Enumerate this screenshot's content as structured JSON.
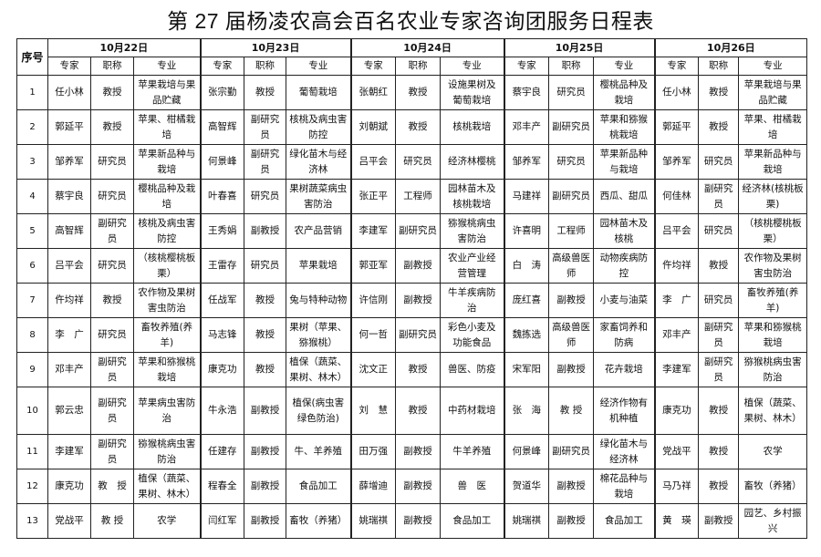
{
  "title": "第 27 届杨凌农高会百名农业专家咨询团服务日程表",
  "header": {
    "seq_label": "序号",
    "days": [
      "10月22日",
      "10月23日",
      "10月24日",
      "10月25日",
      "10月26日"
    ],
    "sub_columns": [
      "专家",
      "职称",
      "专业"
    ]
  },
  "rows": [
    {
      "n": "1",
      "cells": [
        [
          "任小林",
          "教授",
          "苹果栽培与果品贮藏"
        ],
        [
          "张宗勤",
          "教授",
          "葡萄栽培"
        ],
        [
          "张朝红",
          "教授",
          "设施果树及葡萄栽培"
        ],
        [
          "蔡宇良",
          "研究员",
          "樱桃品种及栽培"
        ],
        [
          "任小林",
          "教授",
          "苹果栽培与果品贮藏"
        ]
      ]
    },
    {
      "n": "2",
      "cells": [
        [
          "郭延平",
          "教授",
          "苹果、柑橘栽培"
        ],
        [
          "高智辉",
          "副研究员",
          "核桃及病虫害防控"
        ],
        [
          "刘朝斌",
          "教授",
          "核桃栽培"
        ],
        [
          "邓丰产",
          "副研究员",
          "苹果和猕猴桃栽培"
        ],
        [
          "郭延平",
          "教授",
          "苹果、柑橘栽培"
        ]
      ]
    },
    {
      "n": "3",
      "cells": [
        [
          "邹养军",
          "研究员",
          "苹果新品种与栽培"
        ],
        [
          "何景峰",
          "副研究员",
          "绿化苗木与经济林"
        ],
        [
          "吕平会",
          "研究员",
          "经济林樱桃"
        ],
        [
          "邹养军",
          "研究员",
          "苹果新品种与栽培"
        ],
        [
          "邹养军",
          "研究员",
          "苹果新品种与栽培"
        ]
      ]
    },
    {
      "n": "4",
      "cells": [
        [
          "蔡宇良",
          "研究员",
          "樱桃品种及栽培"
        ],
        [
          "叶春喜",
          "研究员",
          "果树蔬菜病虫害防治"
        ],
        [
          "张正平",
          "工程师",
          "园林苗木及核桃栽培"
        ],
        [
          "马建祥",
          "副研究员",
          "西瓜、甜瓜"
        ],
        [
          "何佳林",
          "副研究员",
          "经济林(核桃板栗)"
        ]
      ]
    },
    {
      "n": "5",
      "cells": [
        [
          "高智辉",
          "副研究员",
          "核桃及病虫害防控"
        ],
        [
          "王秀娟",
          "副教授",
          "农产品营销"
        ],
        [
          "李建军",
          "副研究员",
          "猕猴桃病虫害防治"
        ],
        [
          "许喜明",
          "工程师",
          "园林苗木及核桃"
        ],
        [
          "吕平会",
          "研究员",
          "（核桃樱桃板栗）"
        ]
      ]
    },
    {
      "n": "6",
      "cells": [
        [
          "吕平会",
          "研究员",
          "（核桃樱桃板栗）"
        ],
        [
          "王雷存",
          "研究员",
          "苹果栽培"
        ],
        [
          "郭亚军",
          "副教授",
          "农业产业经营管理"
        ],
        [
          "白　涛",
          "高级兽医师",
          "动物疾病防控"
        ],
        [
          "仵均祥",
          "教授",
          "农作物及果树害虫防治"
        ]
      ]
    },
    {
      "n": "7",
      "cells": [
        [
          "仵均祥",
          "教授",
          "农作物及果树害虫防治"
        ],
        [
          "任战军",
          "教授",
          "兔与特种动物"
        ],
        [
          "许信刚",
          "副教授",
          "牛羊疾病防治"
        ],
        [
          "庞红喜",
          "副教授",
          "小麦与油菜"
        ],
        [
          "李　广",
          "研究员",
          "畜牧养殖(养羊)"
        ]
      ]
    },
    {
      "n": "8",
      "cells": [
        [
          "李　广",
          "研究员",
          "畜牧养殖(养羊)"
        ],
        [
          "马志锋",
          "教授",
          "果树（苹果、猕猴桃）"
        ],
        [
          "何一哲",
          "副研究员",
          "彩色小麦及功能食品"
        ],
        [
          "魏拣选",
          "高级兽医师",
          "家畜饲养和防病"
        ],
        [
          "邓丰产",
          "副研究员",
          "苹果和猕猴桃栽培"
        ]
      ]
    },
    {
      "n": "9",
      "cells": [
        [
          "邓丰产",
          "副研究员",
          "苹果和猕猴桃栽培"
        ],
        [
          "康克功",
          "教授",
          "植保（蔬菜、果树、林木）"
        ],
        [
          "沈文正",
          "教授",
          "兽医、防疫"
        ],
        [
          "宋军阳",
          "副教授",
          "花卉栽培"
        ],
        [
          "李建军",
          "副研究员",
          "猕猴桃病虫害防治"
        ]
      ]
    },
    {
      "n": "10",
      "cells": [
        [
          "郭云忠",
          "副研究员",
          "苹果病虫害防治"
        ],
        [
          "牛永浩",
          "副教授",
          "植保(病虫害绿色防治)"
        ],
        [
          "刘　慧",
          "教授",
          "中药材栽培"
        ],
        [
          "张　海",
          "教 授",
          "经济作物有机种植"
        ],
        [
          "康克功",
          "教授",
          "植保（蔬菜、果树、林木）"
        ]
      ]
    },
    {
      "n": "11",
      "cells": [
        [
          "李建军",
          "副研究员",
          "猕猴桃病虫害防治"
        ],
        [
          "任建存",
          "副教授",
          "牛、羊养殖"
        ],
        [
          "田万强",
          "副教授",
          "牛羊养殖"
        ],
        [
          "何景峰",
          "副研究员",
          "绿化苗木与经济林"
        ],
        [
          "党战平",
          "教授",
          "农学"
        ]
      ]
    },
    {
      "n": "12",
      "cells": [
        [
          "康克功",
          "教　授",
          "植保（蔬菜、果树、林木）"
        ],
        [
          "程春全",
          "副教授",
          "食品加工"
        ],
        [
          "薛增迪",
          "副教授",
          "兽　医"
        ],
        [
          "贺道华",
          "副教授",
          "棉花品种与栽培"
        ],
        [
          "马乃祥",
          "教授",
          "畜牧（养猪）"
        ]
      ]
    },
    {
      "n": "13",
      "cells": [
        [
          "党战平",
          "教 授",
          "农学"
        ],
        [
          "闫红军",
          "副教授",
          "畜牧（养猪）"
        ],
        [
          "姚瑞祺",
          "副教授",
          "食品加工"
        ],
        [
          "姚瑞祺",
          "副教授",
          "食品加工"
        ],
        [
          "黄　瑛",
          "副教授",
          "园艺、乡村振兴"
        ]
      ]
    }
  ]
}
